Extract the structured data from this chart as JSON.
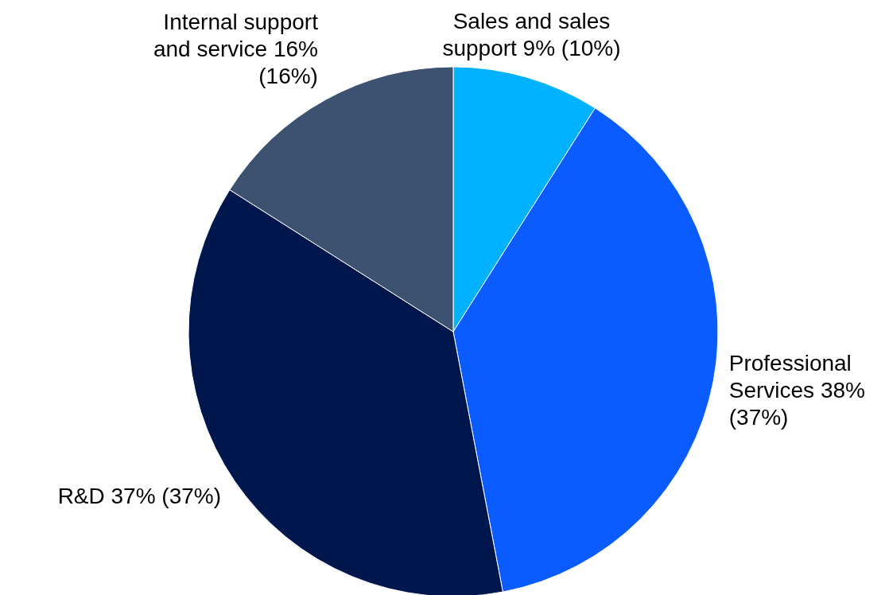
{
  "chart_data": {
    "type": "pie",
    "categories": [
      "Sales and sales support",
      "Professional Services",
      "R&D",
      "Internal support and service"
    ],
    "values": [
      9,
      38,
      37,
      16
    ],
    "value_labels": [
      "9% (10%)",
      "38% (37%)",
      "37% (37%)",
      "16% (16%)"
    ],
    "colors": [
      "#00b2ff",
      "#0a5cff",
      "#00174d",
      "#3d5270"
    ]
  }
}
